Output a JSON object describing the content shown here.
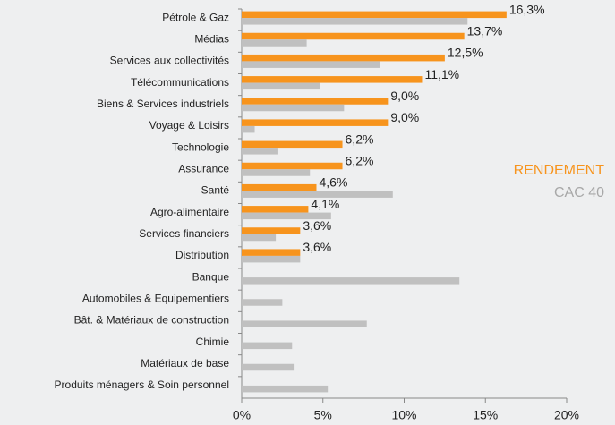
{
  "chart_data": {
    "type": "bar",
    "orientation": "horizontal",
    "categories": [
      "Pétrole & Gaz",
      "Médias",
      "Services aux collectivités",
      "Télécommunications",
      "Biens & Services industriels",
      "Voyage & Loisirs",
      "Technologie",
      "Assurance",
      "Santé",
      "Agro-alimentaire",
      "Services financiers",
      "Distribution",
      "Banque",
      "Automobiles & Equipementiers",
      "Bât. & Matériaux de construction",
      "Chimie",
      "Matériaux de base",
      "Produits ménagers & Soin personnel"
    ],
    "series": [
      {
        "name": "RENDEMENT",
        "color": "#f7941d",
        "values": [
          16.3,
          13.7,
          12.5,
          11.1,
          9.0,
          9.0,
          6.2,
          6.2,
          4.6,
          4.1,
          3.6,
          3.6,
          null,
          null,
          null,
          null,
          null,
          null
        ],
        "value_labels": [
          "16,3%",
          "13,7%",
          "12,5%",
          "11,1%",
          "9,0%",
          "9,0%",
          "6,2%",
          "6,2%",
          "4,6%",
          "4,1%",
          "3,6%",
          "3,6%",
          null,
          null,
          null,
          null,
          null,
          null
        ]
      },
      {
        "name": "CAC 40",
        "color": "#c0c0c0",
        "values": [
          13.9,
          4.0,
          8.5,
          4.8,
          6.3,
          0.8,
          2.2,
          4.2,
          9.3,
          5.5,
          2.1,
          3.6,
          13.4,
          2.5,
          7.7,
          3.1,
          3.2,
          5.3
        ]
      }
    ],
    "xlim": [
      0,
      20
    ],
    "xticks": [
      {
        "value": 0,
        "label": "0%"
      },
      {
        "value": 5,
        "label": "5%"
      },
      {
        "value": 10,
        "label": "10%"
      },
      {
        "value": 15,
        "label": "15%"
      },
      {
        "value": 20,
        "label": "20%"
      }
    ]
  }
}
